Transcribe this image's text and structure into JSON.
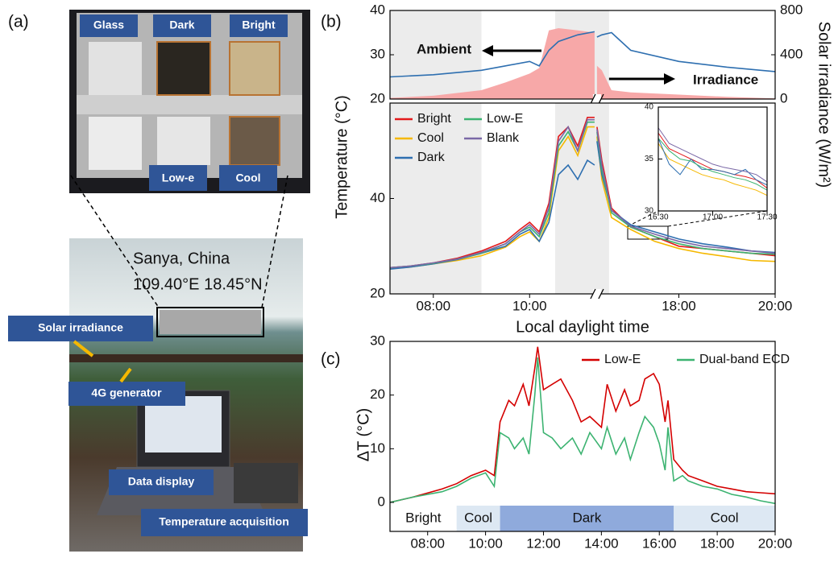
{
  "panel_labels": [
    "(a)",
    "(b)",
    "(c)"
  ],
  "photo": {
    "top_labels": [
      "Glass",
      "Dark",
      "Bright",
      "Low-e",
      "Cool"
    ],
    "location": "Sanya, China",
    "coordinates": "109.40°E 18.45°N",
    "callouts": [
      "Solar irradiance",
      "4G generator",
      "Data display",
      "Temperature acquisition"
    ]
  },
  "chart_data": [
    {
      "type": "line",
      "xlim": [
        7.1,
        20
      ],
      "xbreak": [
        11.4,
        16.3
      ],
      "ylim": [
        20,
        40
      ],
      "yticks": [
        20,
        30,
        40
      ],
      "y2lim": [
        0,
        800
      ],
      "y2ticks": [
        0,
        400,
        800
      ],
      "y2label": "Solar irradiance (W/m²)",
      "shaded": [
        [
          7.1,
          9
        ],
        [
          10.53,
          16.55
        ]
      ],
      "x": [
        7.1,
        8,
        9,
        9.5,
        10,
        10.2,
        10.4,
        10.6,
        11,
        11.35,
        14,
        16.3,
        16.4,
        16.6,
        17,
        18,
        19,
        20
      ],
      "series": [
        {
          "name": "Irradiance",
          "type": "area",
          "axis": "y2",
          "color": "#f7a8a8",
          "values": [
            10,
            30,
            80,
            150,
            230,
            280,
            620,
            640,
            620,
            600,
            null,
            300,
            260,
            80,
            60,
            40,
            20,
            5
          ]
        },
        {
          "name": "Ambient",
          "color": "#2e6fb0",
          "values": [
            25,
            25.5,
            26.5,
            27.5,
            28.5,
            27.5,
            31,
            33,
            34.5,
            35.2,
            null,
            34,
            34.5,
            35,
            31,
            28.5,
            27.2,
            26.2
          ]
        }
      ]
    },
    {
      "type": "line",
      "xlim": [
        7.1,
        20
      ],
      "xbreak": [
        11.4,
        16.3
      ],
      "xticks": [
        {
          "value": 8,
          "label": "08:00"
        },
        {
          "value": 10,
          "label": "10:00"
        },
        {
          "value": 18,
          "label": "18:00"
        },
        {
          "value": 20,
          "label": "20:00"
        }
      ],
      "xlabel": "Local daylight time",
      "ylim": [
        20,
        60
      ],
      "yticks": [
        20,
        40
      ],
      "ylabel": "Temperature (°C)",
      "shaded": [
        [
          7.1,
          9
        ],
        [
          10.53,
          16.55
        ]
      ],
      "legend": "upper left",
      "legend_columns": 2,
      "x": [
        7.1,
        7.5,
        8,
        8.5,
        9,
        9.5,
        9.8,
        10,
        10.2,
        10.4,
        10.6,
        10.8,
        11,
        11.2,
        11.35,
        14,
        16.3,
        16.4,
        16.6,
        17,
        17.5,
        18,
        18.5,
        19,
        19.5,
        20
      ],
      "series": [
        {
          "name": "Bright",
          "color": "#e31a1c",
          "values": [
            25.5,
            25.8,
            26.5,
            27.5,
            29,
            31,
            33.5,
            35,
            33,
            39,
            53,
            55,
            51,
            57,
            57,
            null,
            55,
            48,
            38,
            34,
            32,
            30,
            29.5,
            29,
            28.5,
            28
          ]
        },
        {
          "name": "Cool",
          "color": "#f5b800",
          "values": [
            25.3,
            25.6,
            26.3,
            27,
            28,
            29.8,
            32,
            33,
            31,
            36,
            50,
            53,
            49,
            55,
            55,
            null,
            53,
            44,
            36,
            33.5,
            31,
            29.5,
            28.5,
            27.8,
            27,
            26.8
          ]
        },
        {
          "name": "Dark",
          "color": "#2e6fb0",
          "values": [
            25.2,
            25.6,
            26.3,
            27.2,
            28.5,
            30,
            32.5,
            33.5,
            31,
            35,
            45,
            47,
            44,
            48,
            47,
            null,
            52,
            45,
            37.5,
            34.5,
            33,
            31.5,
            30.5,
            29.8,
            29,
            28.7
          ]
        },
        {
          "name": "Low-E",
          "color": "#3cb371",
          "values": [
            25.5,
            25.8,
            26.4,
            27.3,
            28.5,
            30.5,
            33,
            34,
            32,
            37,
            51,
            54,
            50,
            56,
            56,
            null,
            54,
            46,
            37,
            34,
            32,
            30.5,
            29.5,
            29,
            28.5,
            28.3
          ]
        },
        {
          "name": "Blank",
          "color": "#7a68a6",
          "values": [
            25.5,
            25.8,
            26.5,
            27.3,
            28.7,
            30.5,
            33,
            34.5,
            32.5,
            38,
            52,
            55,
            50,
            56.5,
            56.5,
            null,
            54.5,
            47,
            37.5,
            34.2,
            32.5,
            31,
            30,
            29.5,
            29,
            28.5
          ]
        }
      ]
    },
    {
      "type": "line",
      "xlim": [
        16.5,
        17.5
      ],
      "xticks": [
        {
          "value": 16.5,
          "label": "16:30"
        },
        {
          "value": 17,
          "label": "17:00"
        },
        {
          "value": 17.5,
          "label": "17:30"
        }
      ],
      "ylim": [
        30,
        40
      ],
      "yticks": [
        30,
        35,
        40
      ],
      "x": [
        16.5,
        16.6,
        16.7,
        16.8,
        16.9,
        17,
        17.1,
        17.2,
        17.3,
        17.4,
        17.5
      ],
      "series": [
        {
          "color": "#e31a1c",
          "values": [
            37.5,
            36,
            35.5,
            35,
            34.5,
            34,
            33.8,
            33.5,
            33.3,
            33,
            32.2
          ]
        },
        {
          "color": "#f5b800",
          "values": [
            36.5,
            35,
            34.5,
            34,
            33.5,
            33.2,
            33,
            32.6,
            32.3,
            32,
            31.5
          ]
        },
        {
          "color": "#2e6fb0",
          "values": [
            37,
            34.5,
            33.5,
            35,
            34,
            34,
            33.8,
            33.5,
            34,
            33,
            32.5
          ]
        },
        {
          "color": "#3cb371",
          "values": [
            37,
            35.8,
            35,
            34.8,
            34.2,
            33.8,
            33.5,
            33.2,
            33,
            32.6,
            32
          ]
        },
        {
          "color": "#7a68a6",
          "values": [
            38,
            36.5,
            36,
            35.5,
            35,
            34.5,
            34.2,
            34,
            33.8,
            33.5,
            32.8
          ]
        }
      ]
    },
    {
      "type": "line",
      "xlim": [
        6.7,
        20
      ],
      "xticks": [
        {
          "value": 8,
          "label": "08:00"
        },
        {
          "value": 10,
          "label": "10:00"
        },
        {
          "value": 12,
          "label": "12:00"
        },
        {
          "value": 14,
          "label": "14:00"
        },
        {
          "value": 16,
          "label": "16:00"
        },
        {
          "value": 18,
          "label": "18:00"
        },
        {
          "value": 20,
          "label": "20:00"
        }
      ],
      "ylim": [
        -5.4,
        30
      ],
      "yticks": [
        0,
        10,
        20,
        30
      ],
      "ylabel": "ΔT (°C)",
      "legend": "upper right",
      "legend_columns": 2,
      "phases": [
        {
          "label": "Bright",
          "start": 6.7,
          "end": 9,
          "color": "#ffffff"
        },
        {
          "label": "Cool",
          "start": 9,
          "end": 10.5,
          "color": "#dde8f3"
        },
        {
          "label": "Dark",
          "start": 10.5,
          "end": 16.5,
          "color": "#8faadc"
        },
        {
          "label": "Cool",
          "start": 16.5,
          "end": 20,
          "color": "#dde8f3"
        }
      ],
      "x": [
        6.7,
        7.5,
        8.5,
        9,
        9.5,
        10,
        10.3,
        10.5,
        10.8,
        11,
        11.3,
        11.5,
        11.7,
        11.8,
        12,
        12.3,
        12.6,
        13,
        13.3,
        13.6,
        14,
        14.2,
        14.5,
        14.8,
        15,
        15.3,
        15.5,
        15.8,
        16,
        16.2,
        16.3,
        16.5,
        16.8,
        17,
        17.5,
        18,
        18.5,
        19,
        19.5,
        20
      ],
      "series": [
        {
          "name": "Low-E",
          "color": "#d40000",
          "values": [
            0,
            1,
            2.5,
            3.5,
            5,
            6,
            5,
            15,
            19,
            18,
            22,
            18,
            25,
            29,
            21,
            22,
            23,
            19,
            15,
            16,
            14,
            22,
            17,
            21,
            18,
            19,
            23,
            24,
            22,
            15,
            19,
            8,
            6,
            5,
            4,
            3,
            2.5,
            2,
            1.8,
            1.6
          ]
        },
        {
          "name": "Dual-band ECD",
          "color": "#3cb371",
          "values": [
            0,
            1,
            2,
            3,
            4.5,
            5.5,
            3,
            13,
            12,
            10,
            12,
            9,
            20,
            27,
            13,
            12,
            10,
            12,
            9,
            13,
            10,
            14,
            9,
            12,
            8,
            13,
            16,
            14,
            11,
            6,
            14,
            4,
            5,
            4,
            3,
            2.5,
            1.5,
            1,
            0.3,
            -0.2
          ]
        }
      ]
    }
  ]
}
